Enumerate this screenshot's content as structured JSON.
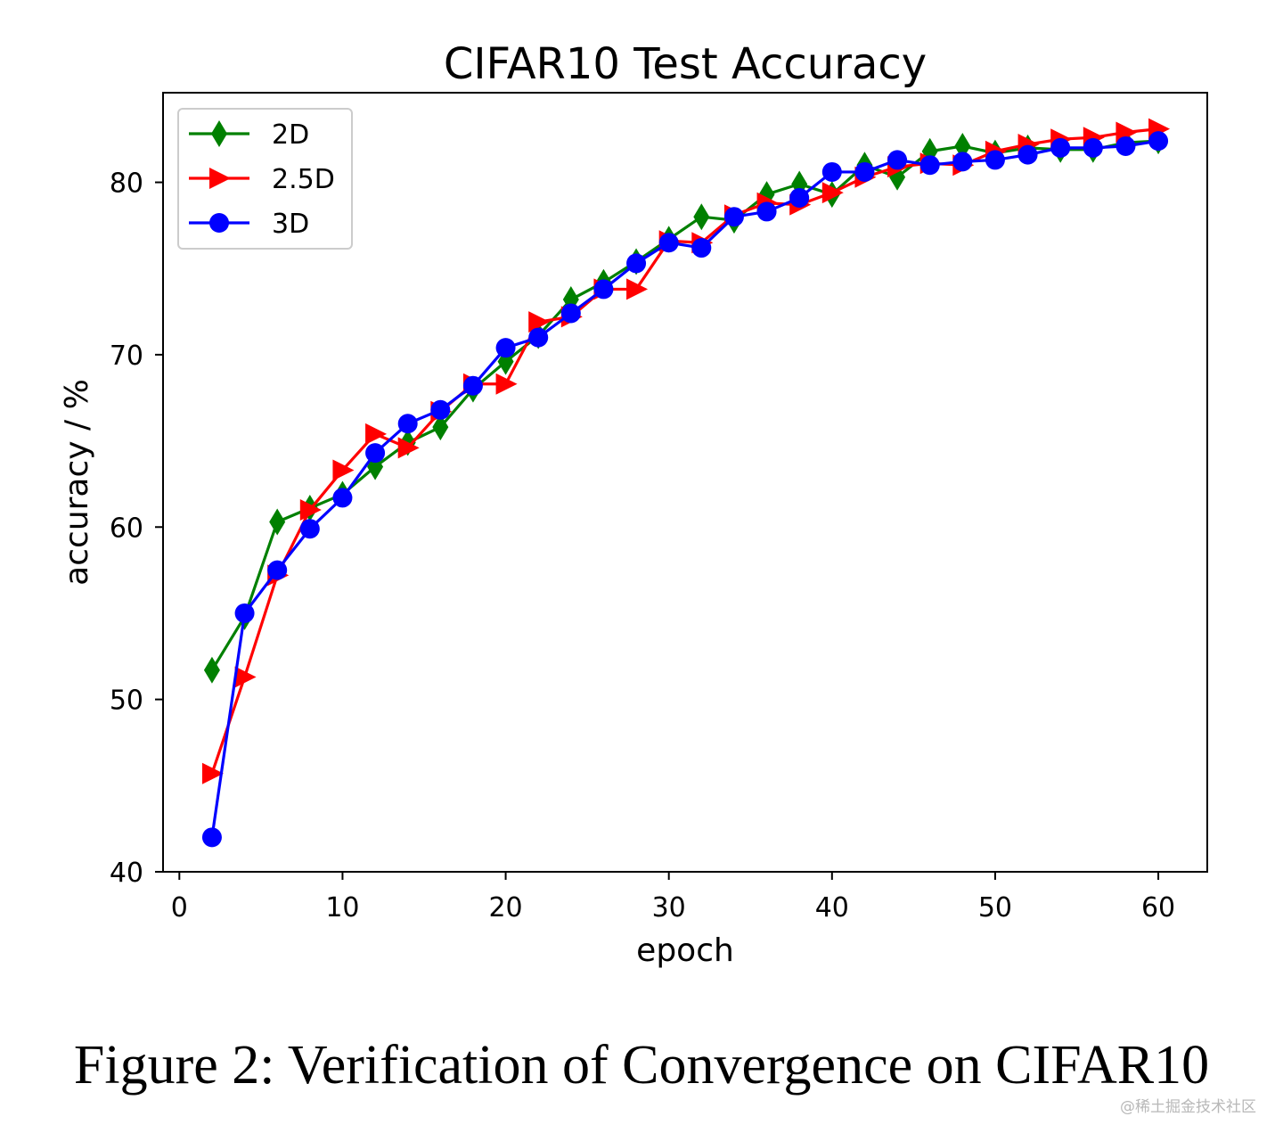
{
  "chart_data": {
    "type": "line",
    "title": "CIFAR10 Test Accuracy",
    "xlabel": "epoch",
    "ylabel": "accuracy / %",
    "xlim": [
      -1,
      63
    ],
    "ylim": [
      40,
      85.2
    ],
    "xticks": [
      0,
      10,
      20,
      30,
      40,
      50,
      60
    ],
    "yticks": [
      40,
      50,
      60,
      70,
      80
    ],
    "grid": false,
    "legend_position": "top-left",
    "x": [
      2,
      4,
      6,
      8,
      10,
      12,
      14,
      16,
      18,
      20,
      22,
      24,
      26,
      28,
      30,
      32,
      34,
      36,
      38,
      40,
      42,
      44,
      46,
      48,
      50,
      52,
      54,
      56,
      58,
      60
    ],
    "series": [
      {
        "name": "2D",
        "color": "#008000",
        "marker": "thin_diamond",
        "values": [
          51.7,
          54.8,
          60.3,
          61.1,
          61.9,
          63.5,
          64.9,
          65.8,
          68.0,
          69.6,
          71.1,
          73.2,
          74.2,
          75.4,
          76.7,
          78.0,
          77.8,
          79.3,
          79.9,
          79.3,
          81.0,
          80.3,
          81.8,
          82.1,
          81.7,
          82.0,
          81.9,
          81.9,
          82.3,
          82.4
        ]
      },
      {
        "name": "2.5D",
        "color": "#ff0000",
        "marker": "triangle_right",
        "values": [
          45.7,
          51.3,
          57.2,
          61.0,
          63.3,
          65.4,
          64.6,
          66.7,
          68.3,
          68.3,
          71.9,
          72.2,
          73.8,
          73.8,
          76.6,
          76.5,
          78.1,
          78.8,
          78.7,
          79.4,
          80.3,
          80.9,
          81.1,
          81.0,
          81.8,
          82.2,
          82.5,
          82.6,
          82.9,
          83.1
        ]
      },
      {
        "name": "3D",
        "color": "#0000ff",
        "marker": "circle",
        "values": [
          42.0,
          55.0,
          57.5,
          59.9,
          61.7,
          64.3,
          66.0,
          66.8,
          68.2,
          70.4,
          71.0,
          72.4,
          73.8,
          75.3,
          76.5,
          76.2,
          78.0,
          78.3,
          79.1,
          80.6,
          80.6,
          81.3,
          81.0,
          81.2,
          81.3,
          81.6,
          82.0,
          82.0,
          82.1,
          82.4
        ]
      }
    ]
  },
  "caption": "Figure 2: Verification of Convergence on CIFAR10",
  "watermark": "@稀土掘金技术社区"
}
